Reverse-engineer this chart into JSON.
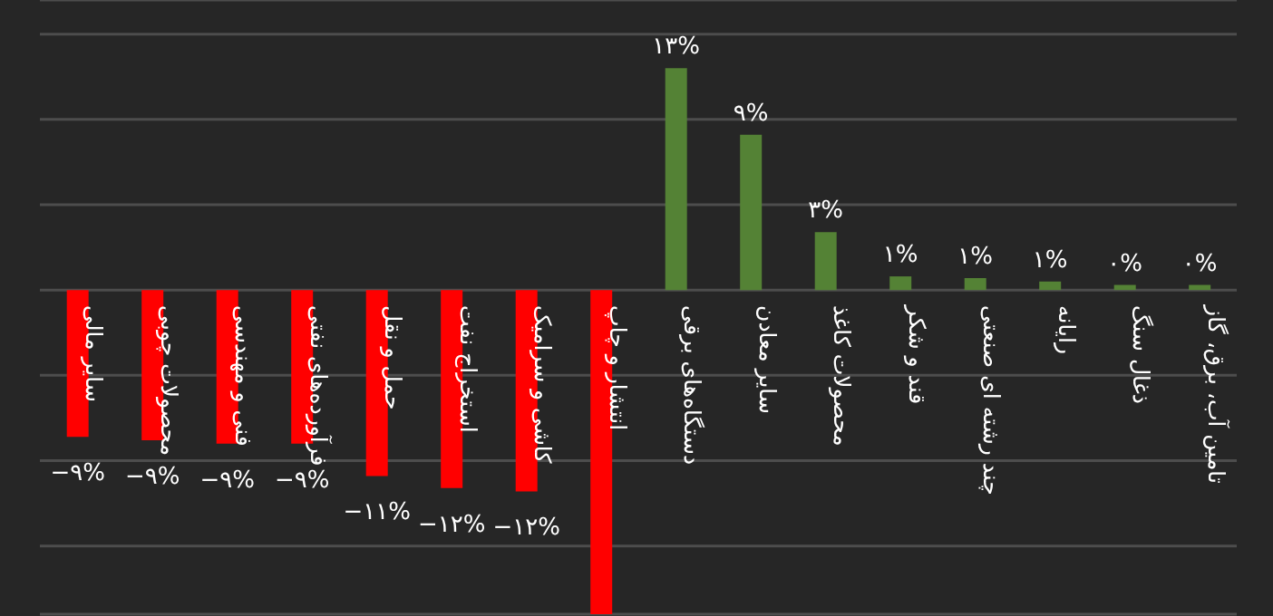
{
  "chart_data": {
    "type": "bar",
    "categories": [
      "سایر مالی",
      "محصولات چوبی",
      "فنی و مهندسی",
      "فرآورده‌های نفتی",
      "حمل و نقل",
      "استخراج نفت",
      "کاشی و سرامیک",
      "انتشار و چاپ",
      "دستگاه‌های برقی",
      "سایر معادن",
      "محصولات کاغذ",
      "قند و شکر",
      "چند رشته ای صنعتی",
      "رایانه",
      "ذغال سنگ",
      "تامین آب، برق، گاز"
    ],
    "values": [
      -8.6,
      -8.8,
      -9,
      -9,
      -10.9,
      -11.6,
      -11.8,
      -19,
      13,
      9.1,
      3.4,
      0.8,
      0.7,
      0.5,
      0.3,
      0.3
    ],
    "colors": [
      "#ff0000",
      "#ff0000",
      "#ff0000",
      "#ff0000",
      "#ff0000",
      "#ff0000",
      "#ff0000",
      "#ff0000",
      "#548235",
      "#548235",
      "#548235",
      "#548235",
      "#548235",
      "#548235",
      "#548235",
      "#548235"
    ],
    "value_labels": [
      "−۹%",
      "−۹%",
      "−۹%",
      "−۹%",
      "−۱۱%",
      "−۱۲%",
      "−۱۲%",
      null,
      "۱۳%",
      "۹%",
      "۳%",
      "۱%",
      "۱%",
      "۱%",
      "۰%",
      "۰%"
    ],
    "ylim": [
      -19,
      17
    ],
    "yticks": [
      {
        "value": -15,
        "label": null
      },
      {
        "value": -10,
        "label": null
      },
      {
        "value": -5,
        "label": null
      },
      {
        "value": 0,
        "label": null
      },
      {
        "value": 5,
        "label": null
      },
      {
        "value": 10,
        "label": null
      },
      {
        "value": 15,
        "label": null
      }
    ],
    "grid": "y",
    "tick_labels": "x"
  }
}
